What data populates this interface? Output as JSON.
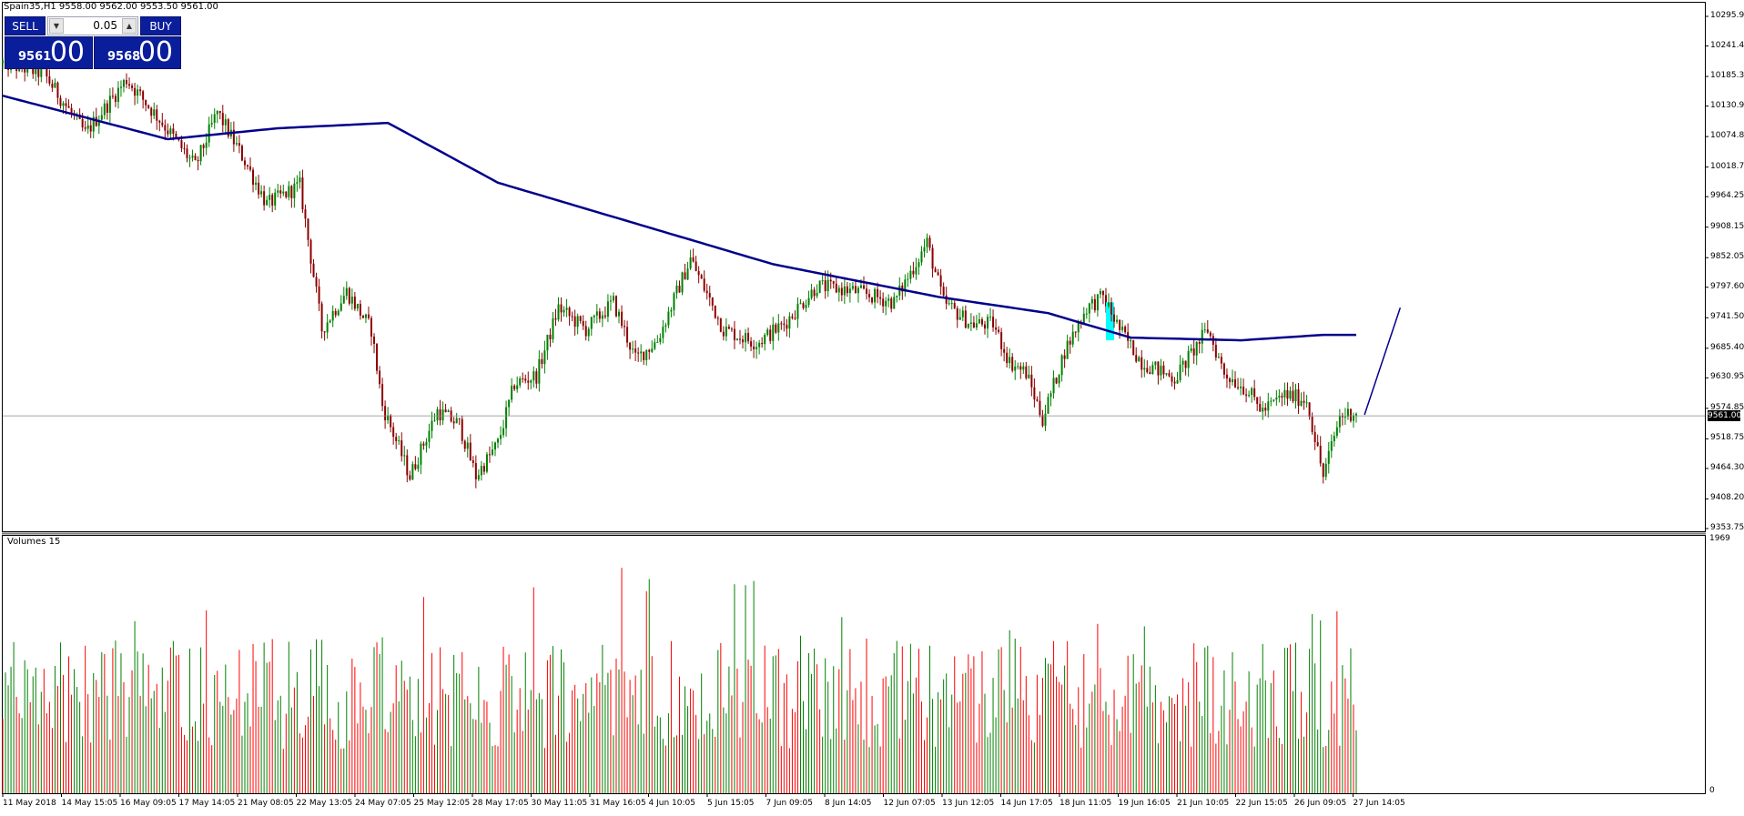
{
  "header": {
    "symbol_line": "Spain35,H1  9558.00 9562.00 9553.50 9561.00"
  },
  "trade_panel": {
    "sell_label": "SELL",
    "buy_label": "BUY",
    "lot": "0.05",
    "bid_small": "9561",
    "bid_big": "00",
    "ask_small": "9568",
    "ask_big": "00"
  },
  "price_axis": [
    "10295.90",
    "10241.45",
    "10185.35",
    "10130.90",
    "10074.80",
    "10018.70",
    "9964.25",
    "9908.15",
    "9852.05",
    "9797.60",
    "9741.50",
    "9685.40",
    "9630.95",
    "9574.85",
    "9518.75",
    "9464.30",
    "9408.20",
    "9353.75"
  ],
  "current_price": "9561.00",
  "volume_panel": {
    "title": "Volumes 15",
    "max_label": "1969",
    "min_label": "0"
  },
  "time_axis": [
    "11 May 2018",
    "14 May 15:05",
    "16 May 09:05",
    "17 May 14:05",
    "21 May 08:05",
    "22 May 13:05",
    "24 May 07:05",
    "25 May 12:05",
    "28 May 17:05",
    "30 May 11:05",
    "31 May 16:05",
    "4 Jun 10:05",
    "5 Jun 15:05",
    "7 Jun 09:05",
    "8 Jun 14:05",
    "12 Jun 07:05",
    "13 Jun 12:05",
    "14 Jun 17:05",
    "18 Jun 11:05",
    "19 Jun 16:05",
    "21 Jun 10:05",
    "22 Jun 15:05",
    "26 Jun 09:05",
    "27 Jun 14:05"
  ],
  "colors": {
    "bull": "#008000",
    "bear": "#8b0000",
    "ma": "#00008b",
    "grid": "#000000",
    "highlight": "#00ffff",
    "vol_up": "#008000",
    "vol_down": "#ff0000"
  },
  "chart_data": {
    "type": "candlestick",
    "title": "Spain35,H1",
    "ylim": [
      9353.75,
      10295.9
    ],
    "waypoints": [
      [
        0,
        10210
      ],
      [
        15,
        10190
      ],
      [
        30,
        10080
      ],
      [
        45,
        10180
      ],
      [
        58,
        10100
      ],
      [
        70,
        10020
      ],
      [
        78,
        10120
      ],
      [
        88,
        10030
      ],
      [
        96,
        9950
      ],
      [
        108,
        9985
      ],
      [
        116,
        9720
      ],
      [
        125,
        9790
      ],
      [
        134,
        9720
      ],
      [
        138,
        9580
      ],
      [
        148,
        9450
      ],
      [
        158,
        9570
      ],
      [
        166,
        9545
      ],
      [
        172,
        9450
      ],
      [
        180,
        9510
      ],
      [
        186,
        9620
      ],
      [
        194,
        9635
      ],
      [
        202,
        9760
      ],
      [
        212,
        9720
      ],
      [
        222,
        9770
      ],
      [
        230,
        9665
      ],
      [
        238,
        9700
      ],
      [
        250,
        9850
      ],
      [
        262,
        9720
      ],
      [
        274,
        9695
      ],
      [
        284,
        9730
      ],
      [
        296,
        9800
      ],
      [
        310,
        9790
      ],
      [
        324,
        9770
      ],
      [
        336,
        9880
      ],
      [
        342,
        9770
      ],
      [
        352,
        9730
      ],
      [
        360,
        9730
      ],
      [
        366,
        9660
      ],
      [
        372,
        9640
      ],
      [
        378,
        9555
      ],
      [
        386,
        9680
      ],
      [
        394,
        9760
      ],
      [
        400,
        9780
      ],
      [
        406,
        9720
      ],
      [
        414,
        9660
      ],
      [
        426,
        9630
      ],
      [
        438,
        9720
      ],
      [
        444,
        9640
      ],
      [
        452,
        9610
      ],
      [
        458,
        9570
      ],
      [
        466,
        9600
      ],
      [
        474,
        9590
      ],
      [
        480,
        9450
      ],
      [
        486,
        9560
      ],
      [
        492,
        9570
      ]
    ],
    "ma": [
      [
        0,
        10150
      ],
      [
        60,
        10070
      ],
      [
        100,
        10090
      ],
      [
        140,
        10100
      ],
      [
        180,
        9990
      ],
      [
        240,
        9900
      ],
      [
        280,
        9840
      ],
      [
        340,
        9780
      ],
      [
        380,
        9750
      ],
      [
        410,
        9705
      ],
      [
        450,
        9700
      ],
      [
        480,
        9710
      ],
      [
        492,
        9710
      ]
    ],
    "projection": [
      [
        495,
        9563
      ],
      [
        508,
        9760
      ]
    ],
    "highlight_index": 402
  }
}
